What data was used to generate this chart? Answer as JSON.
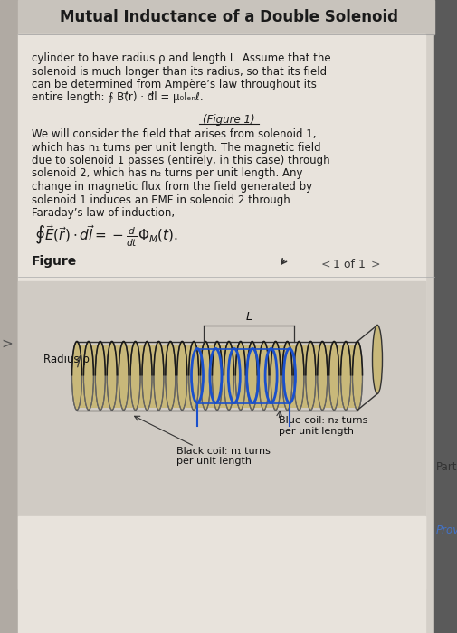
{
  "title": "Mutual Inductance of a Double Solenoid",
  "bg_color": "#d4cfc8",
  "panel_bg": "#e8e3dc",
  "title_bg": "#c8c3bc",
  "text_block": [
    "cylinder to have radius ρ and length L. Assume that the",
    "solenoid is much longer than its radius, so that its field",
    "can be determined from Ampère’s law throughout its",
    "entire length: ∮ B(⃗r) · d⃗l = μ₀Iₑₙ⁣ℓ."
  ],
  "figure_ref": "(Figure 1)",
  "body_text": [
    "We will consider the field that arises from solenoid 1,",
    "which has n₁ turns per unit length. The magnetic field",
    "due to solenoid 1 passes (entirely, in this case) through",
    "solenoid 2, which has n₂ turns per unit length. Any",
    "change in magnetic flux from the field generated by",
    "solenoid 1 induces an EMF in solenoid 2 through",
    "Faraday’s law of induction,"
  ],
  "figure_label": "Figure",
  "nav_text": "1 of 1",
  "radius_label": "Radius ρ",
  "L_label": "L",
  "blue_coil_label": "Blue coil: n₂ turns\nper unit length",
  "black_coil_label": "Black coil: n₁ turns\nper unit length",
  "part_label": "Part",
  "provic_label": "Provic"
}
